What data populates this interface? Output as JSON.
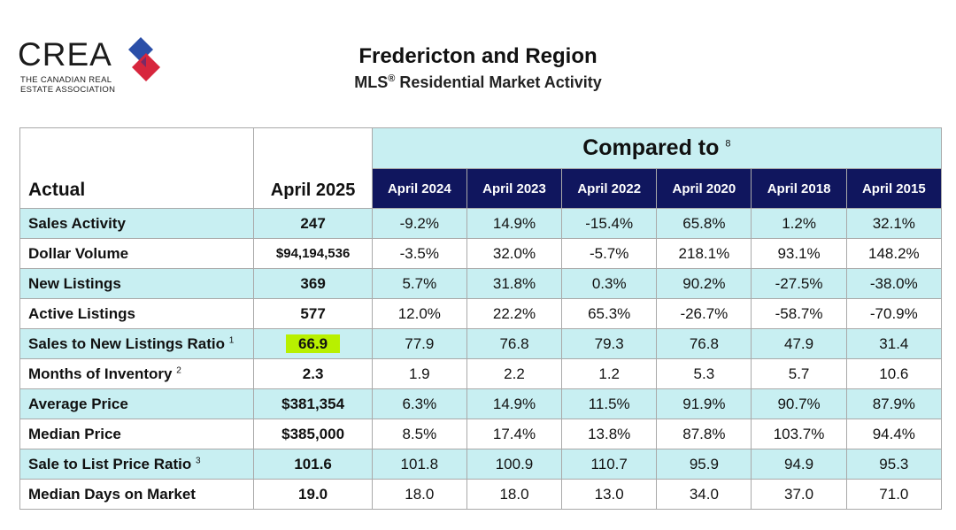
{
  "logo": {
    "wordmark": "CREA",
    "subtitle_line1": "THE CANADIAN REAL",
    "subtitle_line2": "ESTATE ASSOCIATION"
  },
  "header": {
    "title": "Fredericton and Region",
    "subtitle_prefix": "MLS",
    "subtitle_reg": "®",
    "subtitle_suffix": " Residential Market Activity"
  },
  "table": {
    "compared_label": "Compared to",
    "compared_footnote": "8",
    "actual_label": "Actual",
    "current_period": "April 2025",
    "periods": [
      "April 2024",
      "April 2023",
      "April 2022",
      "April 2020",
      "April 2018",
      "April 2015"
    ],
    "rows": [
      {
        "label": "Sales Activity",
        "footnote": "",
        "current": "247",
        "values": [
          "-9.2%",
          "14.9%",
          "-15.4%",
          "65.8%",
          "1.2%",
          "32.1%"
        ]
      },
      {
        "label": "Dollar Volume",
        "footnote": "",
        "current": "$94,194,536",
        "values": [
          "-3.5%",
          "32.0%",
          "-5.7%",
          "218.1%",
          "93.1%",
          "148.2%"
        ]
      },
      {
        "label": "New Listings",
        "footnote": "",
        "current": "369",
        "values": [
          "5.7%",
          "31.8%",
          "0.3%",
          "90.2%",
          "-27.5%",
          "-38.0%"
        ]
      },
      {
        "label": "Active Listings",
        "footnote": "",
        "current": "577",
        "values": [
          "12.0%",
          "22.2%",
          "65.3%",
          "-26.7%",
          "-58.7%",
          "-70.9%"
        ]
      },
      {
        "label": "Sales to New Listings Ratio",
        "footnote": "1",
        "current": "66.9",
        "values": [
          "77.9",
          "76.8",
          "79.3",
          "76.8",
          "47.9",
          "31.4"
        ]
      },
      {
        "label": "Months of Inventory",
        "footnote": "2",
        "current": "2.3",
        "values": [
          "1.9",
          "2.2",
          "1.2",
          "5.3",
          "5.7",
          "10.6"
        ]
      },
      {
        "label": "Average Price",
        "footnote": "",
        "current": "$381,354",
        "values": [
          "6.3%",
          "14.9%",
          "11.5%",
          "91.9%",
          "90.7%",
          "87.9%"
        ]
      },
      {
        "label": "Median Price",
        "footnote": "",
        "current": "$385,000",
        "values": [
          "8.5%",
          "17.4%",
          "13.8%",
          "87.8%",
          "103.7%",
          "94.4%"
        ]
      },
      {
        "label": "Sale to List Price Ratio",
        "footnote": "3",
        "current": "101.6",
        "values": [
          "101.8",
          "100.9",
          "110.7",
          "95.9",
          "94.9",
          "95.3"
        ]
      },
      {
        "label": "Median Days on Market",
        "footnote": "",
        "current": "19.0",
        "values": [
          "18.0",
          "18.0",
          "13.0",
          "34.0",
          "37.0",
          "71.0"
        ]
      }
    ]
  },
  "colors": {
    "header_navy": "#10165e",
    "row_shade": "#c8eff2",
    "highlight": "#b8f000",
    "logo_red": "#d7263d",
    "logo_blue": "#2b4fa8"
  }
}
